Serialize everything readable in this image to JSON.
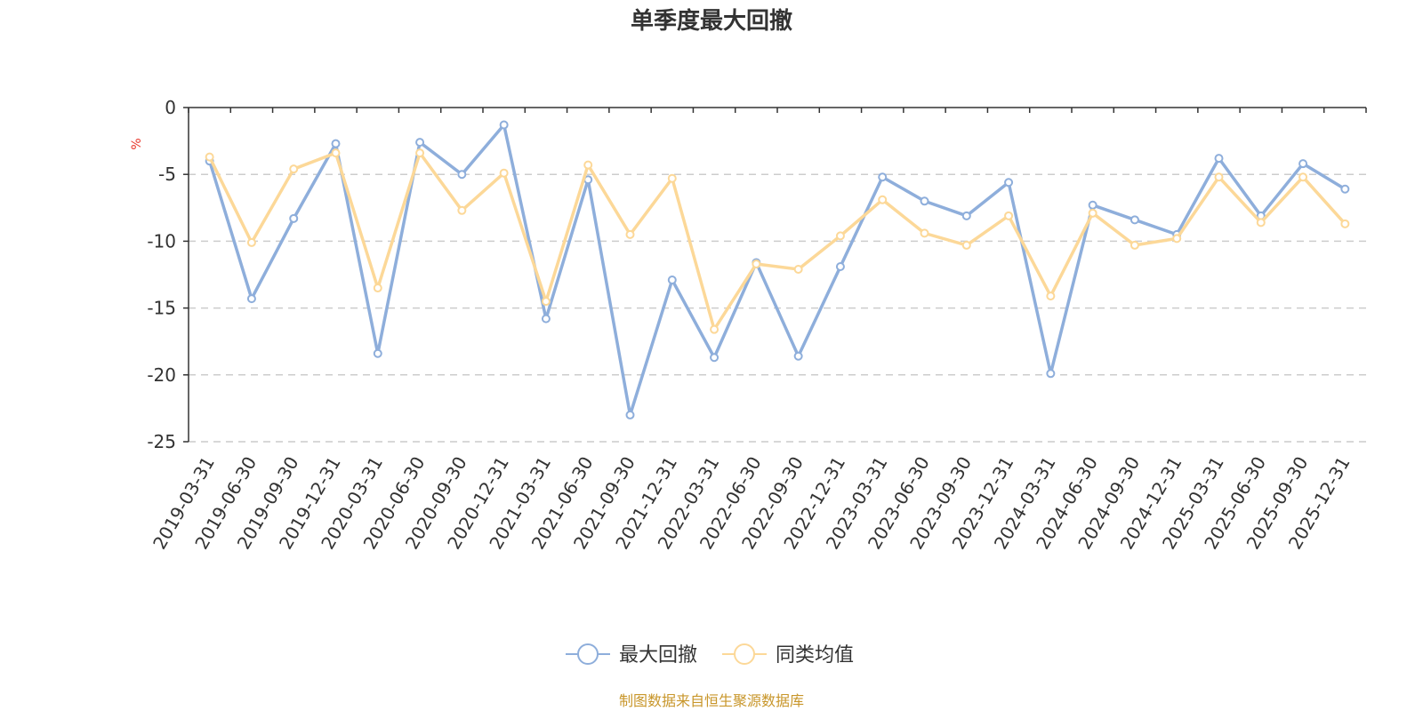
{
  "chart_data": {
    "type": "line",
    "title": "单季度最大回撤",
    "ylabel": "%",
    "ylim": [
      -25,
      0
    ],
    "yticks": [
      0,
      -5,
      -10,
      -15,
      -20,
      -25
    ],
    "grid": true,
    "legend_position": "bottom-center",
    "categories": [
      "2019-03-31",
      "2019-06-30",
      "2019-09-30",
      "2019-12-31",
      "2020-03-31",
      "2020-06-30",
      "2020-09-30",
      "2020-12-31",
      "2021-03-31",
      "2021-06-30",
      "2021-09-30",
      "2021-12-31",
      "2022-03-31",
      "2022-06-30",
      "2022-09-30",
      "2022-12-31",
      "2023-03-31",
      "2023-06-30",
      "2023-09-30",
      "2023-12-31",
      "2024-03-31",
      "2024-06-30",
      "2024-09-30",
      "2024-12-31",
      "2025-03-31",
      "2025-06-30",
      "2025-09-30",
      "2025-12-31"
    ],
    "series": [
      {
        "name": "最大回撤",
        "color": "#8eaedb",
        "values": [
          -4.0,
          -14.3,
          -8.3,
          -2.7,
          -18.4,
          -2.6,
          -5.0,
          -1.3,
          -15.8,
          -5.4,
          -23.0,
          -12.9,
          -18.7,
          -11.6,
          -18.6,
          -11.9,
          -5.2,
          -7.0,
          -8.1,
          -5.6,
          -19.9,
          -7.3,
          -8.4,
          -9.5,
          -3.8,
          -8.1,
          -4.2,
          -6.1
        ]
      },
      {
        "name": "同类均值",
        "color": "#fcd898",
        "values": [
          -3.7,
          -10.1,
          -4.6,
          -3.4,
          -13.5,
          -3.4,
          -7.7,
          -4.9,
          -14.5,
          -4.3,
          -9.5,
          -5.3,
          -16.6,
          -11.7,
          -12.1,
          -9.6,
          -6.9,
          -9.4,
          -10.3,
          -8.1,
          -14.1,
          -7.9,
          -10.3,
          -9.8,
          -5.2,
          -8.6,
          -5.2,
          -8.7
        ]
      }
    ]
  },
  "footer": {
    "source": "制图数据来自恒生聚源数据库",
    "source_color": "#c8962a"
  },
  "unit_color": "#e8362a"
}
